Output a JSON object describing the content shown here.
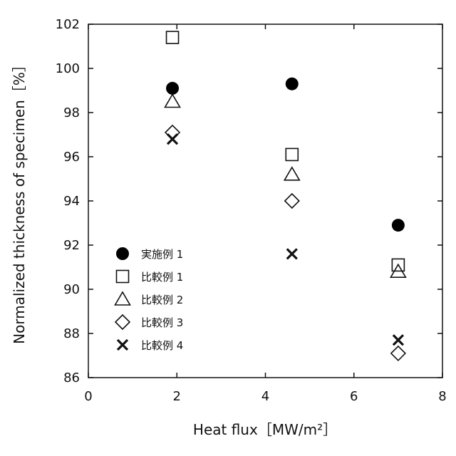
{
  "chart_data": {
    "type": "scatter",
    "xlabel": "Heat flux［MW/m²］",
    "ylabel": "Normalized thickness of specimen［%］",
    "xlim": [
      0,
      8
    ],
    "ylim": [
      86,
      102
    ],
    "xticks": [
      0,
      2,
      4,
      6,
      8
    ],
    "yticks": [
      86,
      88,
      90,
      92,
      94,
      96,
      98,
      100,
      102
    ],
    "grid": false,
    "legend_position": "bottom-left",
    "series": [
      {
        "name": "実施例 1",
        "marker": "filled-circle",
        "x": [
          1.9,
          4.6,
          7.0
        ],
        "y": [
          99.1,
          99.3,
          92.9
        ]
      },
      {
        "name": "比較例 1",
        "marker": "open-square",
        "x": [
          1.9,
          4.6,
          7.0
        ],
        "y": [
          101.4,
          96.1,
          91.1
        ]
      },
      {
        "name": "比較例 2",
        "marker": "open-triangle",
        "x": [
          1.9,
          4.6,
          7.0
        ],
        "y": [
          98.5,
          95.2,
          90.8
        ]
      },
      {
        "name": "比較例 3",
        "marker": "open-diamond",
        "x": [
          1.9,
          4.6,
          7.0
        ],
        "y": [
          97.1,
          94.0,
          87.1
        ]
      },
      {
        "name": "比較例 4",
        "marker": "x-cross",
        "x": [
          1.9,
          4.6,
          7.0
        ],
        "y": [
          96.8,
          91.6,
          87.7
        ]
      }
    ]
  }
}
